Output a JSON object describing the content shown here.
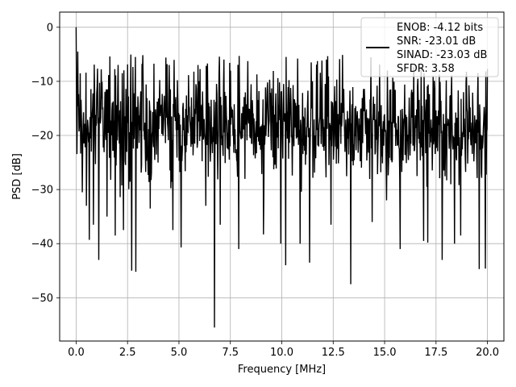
{
  "chart_data": {
    "type": "line",
    "xlabel": "Frequency [MHz]",
    "ylabel": "PSD [dB]",
    "xlim": [
      -0.8,
      20.8
    ],
    "ylim": [
      -58,
      2.8
    ],
    "xticks": [
      0.0,
      2.5,
      5.0,
      7.5,
      10.0,
      12.5,
      15.0,
      17.5,
      20.0
    ],
    "xtick_labels": [
      "0.0",
      "2.5",
      "5.0",
      "7.5",
      "10.0",
      "12.5",
      "15.0",
      "17.5",
      "20.0"
    ],
    "yticks": [
      0,
      -10,
      -20,
      -30,
      -40,
      -50
    ],
    "ytick_labels": [
      "0",
      "−10",
      "−20",
      "−30",
      "−40",
      "−50"
    ],
    "grid": true,
    "legend_position": "top-right",
    "legend_lines": [
      "ENOB: -4.12 bits",
      "SNR: -23.01 dB",
      "SINAD: -23.03 dB",
      "SFDR: 3.58"
    ],
    "line_color": "#000000",
    "noise": {
      "x_start": 0.0,
      "x_end": 20.0,
      "points": 1000,
      "mean": -18.5,
      "spread": 7.5,
      "upper_bound": -5.0
    },
    "peaks": [
      {
        "x": 0.0,
        "y": 0.0
      },
      {
        "x": 0.08,
        "y": -4.5
      },
      {
        "x": 0.2,
        "y": -8.5
      }
    ],
    "dips": [
      {
        "x": 0.3,
        "y": -30.5
      },
      {
        "x": 0.5,
        "y": -33.0
      },
      {
        "x": 0.65,
        "y": -39.3
      },
      {
        "x": 0.85,
        "y": -36.5
      },
      {
        "x": 1.1,
        "y": -43.0
      },
      {
        "x": 1.5,
        "y": -35.0
      },
      {
        "x": 1.9,
        "y": -38.5
      },
      {
        "x": 2.3,
        "y": -37.5
      },
      {
        "x": 2.7,
        "y": -45.0
      },
      {
        "x": 2.9,
        "y": -45.2
      },
      {
        "x": 3.6,
        "y": -33.5
      },
      {
        "x": 4.7,
        "y": -37.5
      },
      {
        "x": 5.1,
        "y": -40.7
      },
      {
        "x": 6.3,
        "y": -33.0
      },
      {
        "x": 6.72,
        "y": -55.5
      },
      {
        "x": 7.0,
        "y": -36.5
      },
      {
        "x": 7.9,
        "y": -41.0
      },
      {
        "x": 9.1,
        "y": -38.3
      },
      {
        "x": 9.95,
        "y": -40.0
      },
      {
        "x": 10.2,
        "y": -44.0
      },
      {
        "x": 10.9,
        "y": -40.0
      },
      {
        "x": 11.35,
        "y": -43.5
      },
      {
        "x": 12.4,
        "y": -36.5
      },
      {
        "x": 13.35,
        "y": -47.5
      },
      {
        "x": 14.4,
        "y": -36.0
      },
      {
        "x": 15.1,
        "y": -32.0
      },
      {
        "x": 15.75,
        "y": -41.0
      },
      {
        "x": 16.9,
        "y": -39.5
      },
      {
        "x": 17.1,
        "y": -39.8
      },
      {
        "x": 17.8,
        "y": -43.0
      },
      {
        "x": 18.4,
        "y": -40.0
      },
      {
        "x": 18.7,
        "y": -38.5
      },
      {
        "x": 19.6,
        "y": -44.7
      },
      {
        "x": 19.9,
        "y": -44.6
      }
    ]
  }
}
